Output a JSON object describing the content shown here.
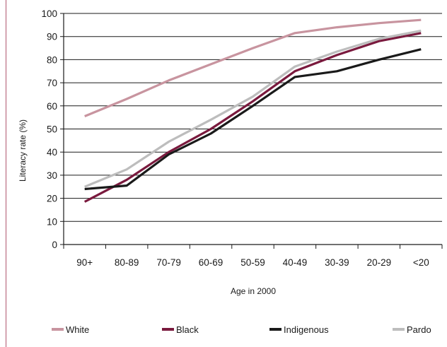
{
  "chart_data": {
    "type": "line",
    "title": "",
    "xlabel": "Age in 2000",
    "ylabel": "Literacy rate (%)",
    "ylim": [
      0,
      100
    ],
    "yticks": [
      0,
      10,
      20,
      30,
      40,
      50,
      60,
      70,
      80,
      90,
      100
    ],
    "categories": [
      "90+",
      "80-89",
      "70-79",
      "60-69",
      "50-59",
      "40-49",
      "30-39",
      "20-29",
      "<20"
    ],
    "grid": "horizontal",
    "legend_position": "bottom",
    "series": [
      {
        "name": "White",
        "color": "#c8949f",
        "values": [
          55.5,
          63,
          71,
          78,
          85,
          91.5,
          94,
          95.8,
          97.2
        ]
      },
      {
        "name": "Black",
        "color": "#7a1a3e",
        "values": [
          18.5,
          28,
          40,
          50,
          62,
          75,
          82,
          88,
          91.5
        ]
      },
      {
        "name": "Indigenous",
        "color": "#1a1a1a",
        "values": [
          24,
          25.5,
          39,
          48,
          60,
          72.5,
          75,
          80,
          84.5
        ]
      },
      {
        "name": "Pardo",
        "color": "#bdbdbd",
        "values": [
          25,
          32.5,
          44.5,
          54,
          64,
          77,
          83.5,
          89,
          92.5
        ]
      }
    ]
  }
}
